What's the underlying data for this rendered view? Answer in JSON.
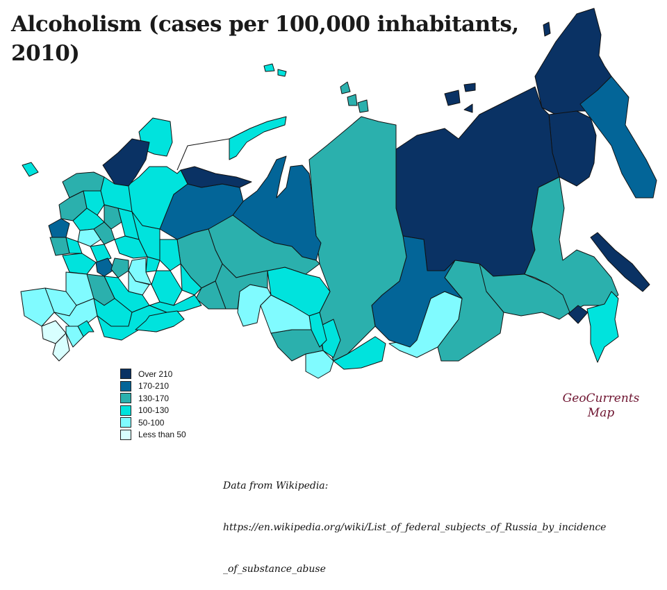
{
  "title": "Alcoholism (cases per 100,000 inhabitants, 2010)",
  "legend": [
    {
      "label": "Over 210",
      "color": "#0a3264"
    },
    {
      "label": "170-210",
      "color": "#036598"
    },
    {
      "label": "130-170",
      "color": "#2bb0ad"
    },
    {
      "label": "100-130",
      "color": "#00e3dd"
    },
    {
      "label": "50-100",
      "color": "#80fbff"
    },
    {
      "label": "Less than 50",
      "color": "#d8ffff"
    }
  ],
  "brand": {
    "line1": "GeoCurrents",
    "line2": "Map"
  },
  "source": {
    "line1": "Data from Wikipedia:",
    "line2": "https://en.wikipedia.org/wiki/List_of_federal_subjects_of_Russia_by_incidence",
    "line3": "_of_substance_abuse"
  }
}
